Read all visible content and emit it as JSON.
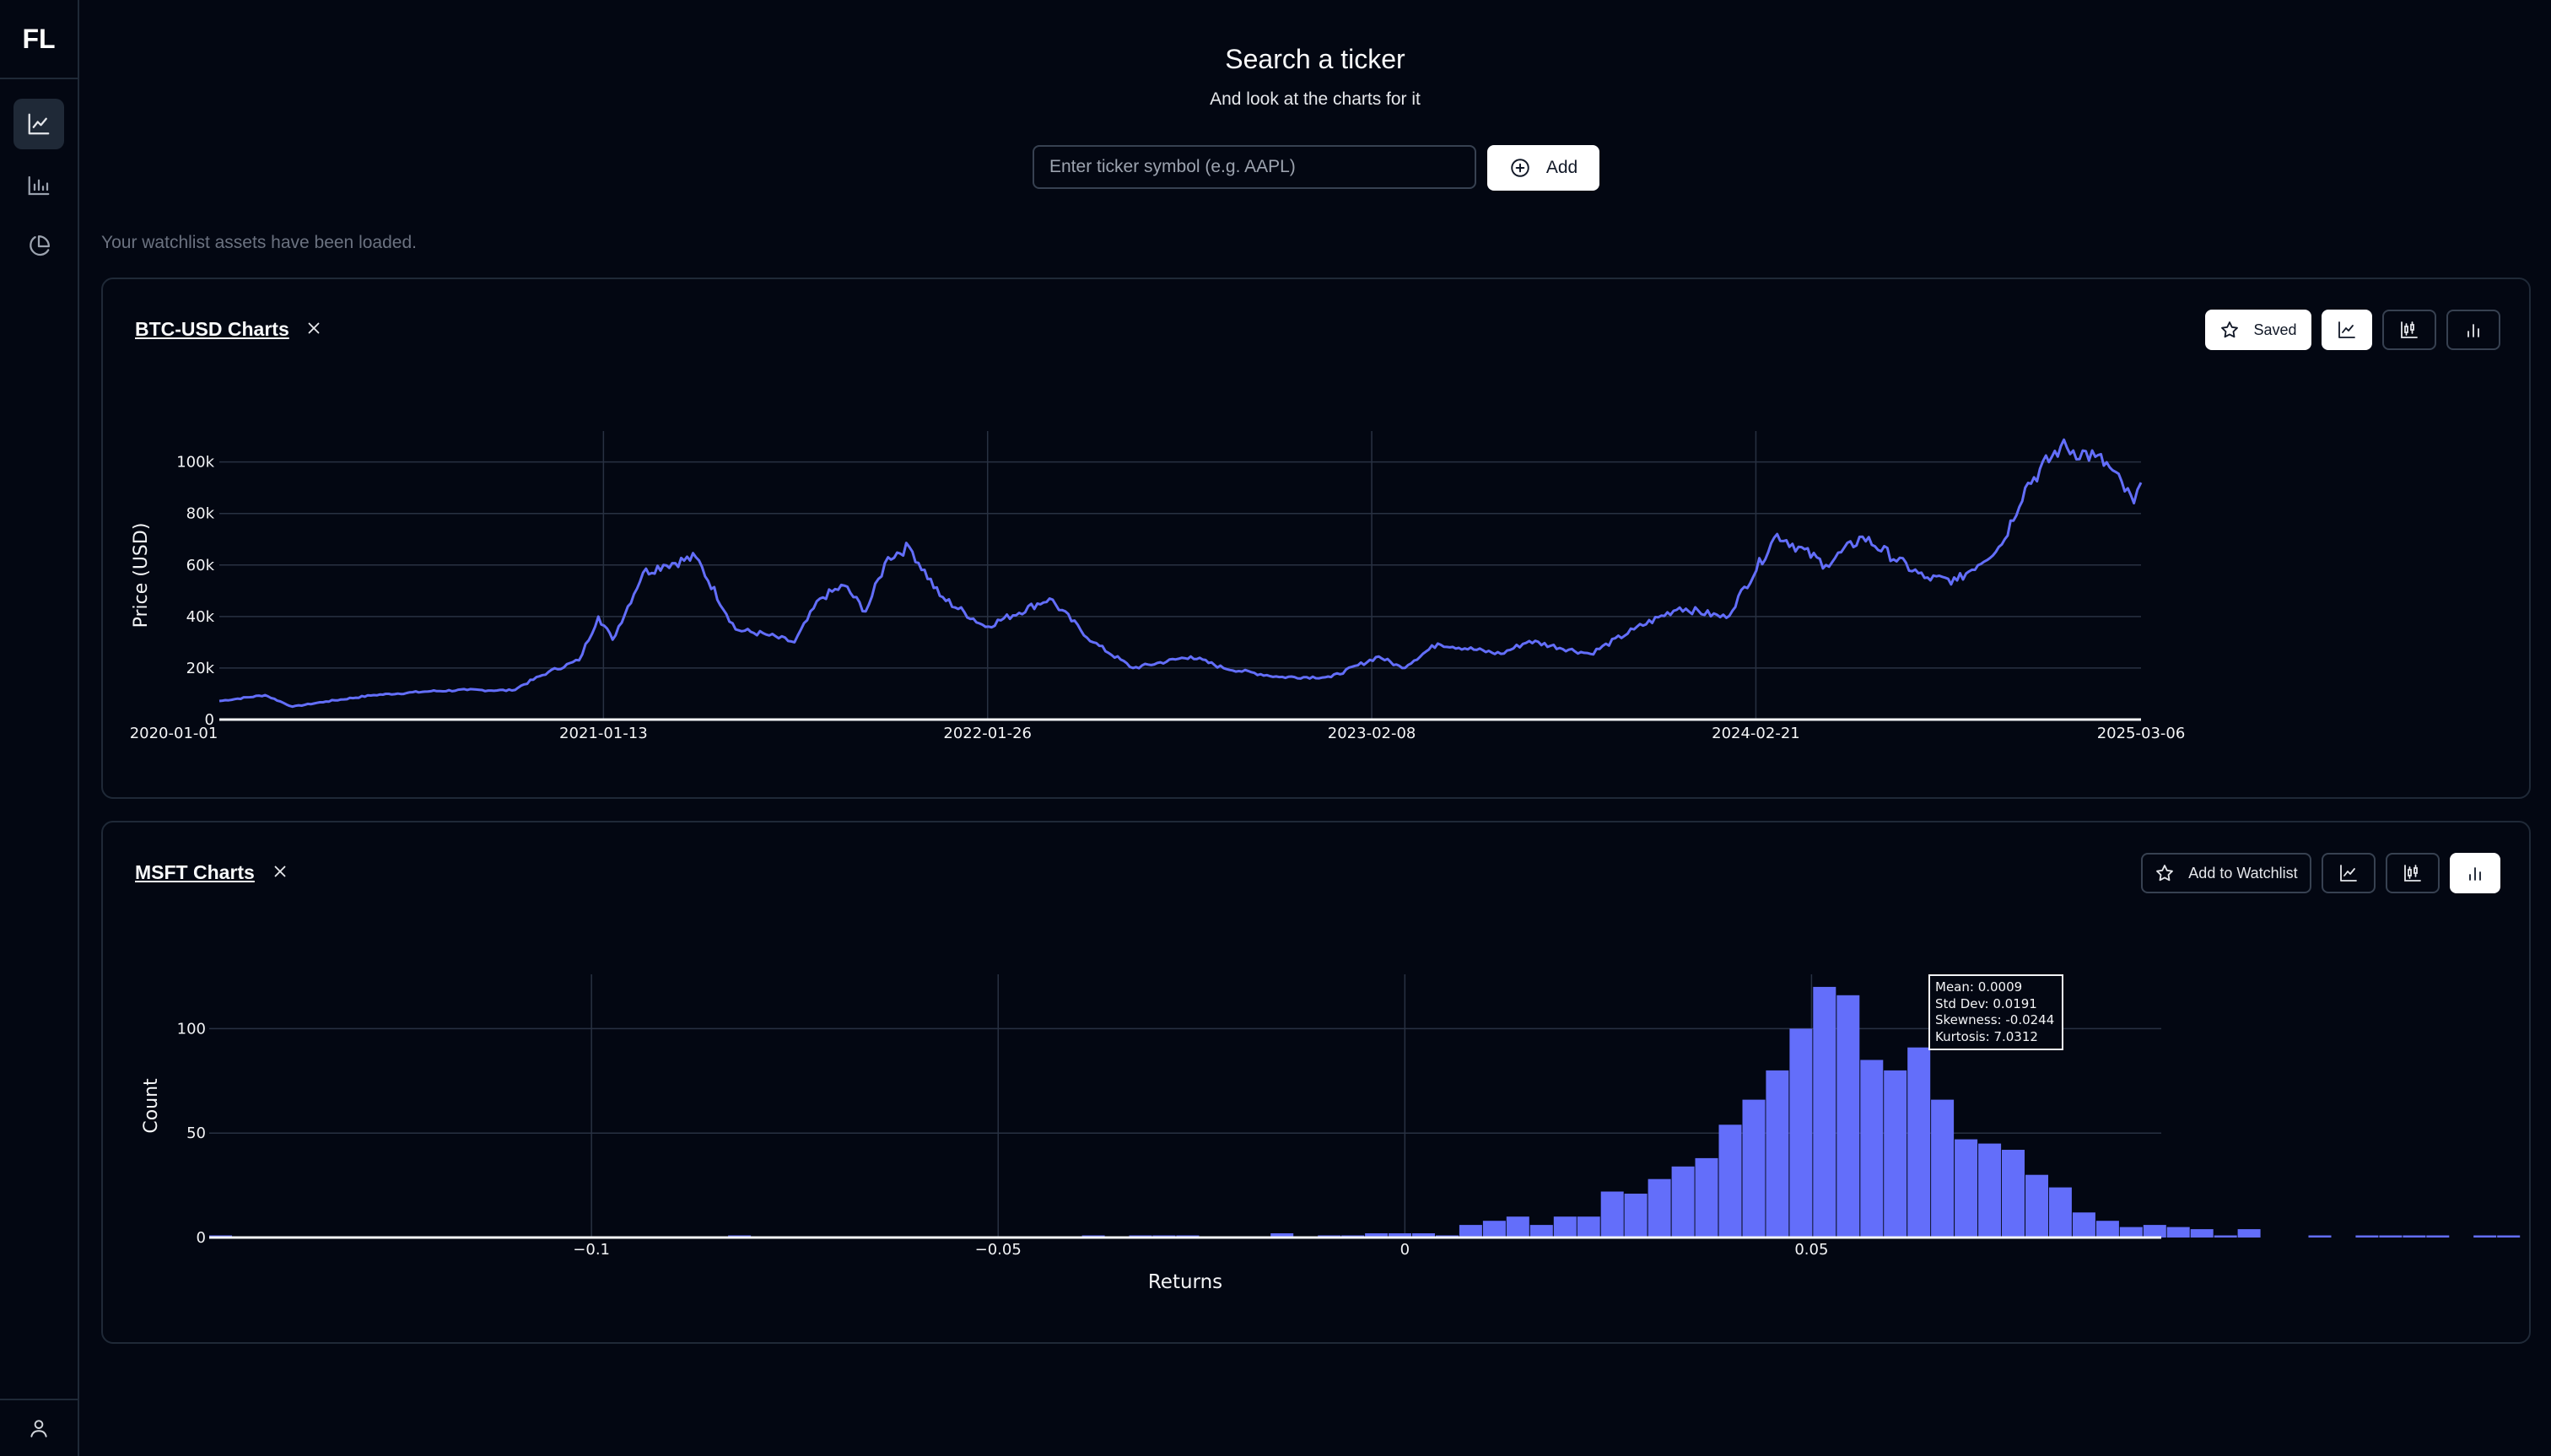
{
  "app": {
    "logo": "FL"
  },
  "sidebar": {
    "items": [
      {
        "icon": "line-chart-icon",
        "active": true
      },
      {
        "icon": "bar-chart-icon",
        "active": false
      },
      {
        "icon": "pie-chart-icon",
        "active": false
      }
    ],
    "footer_icon": "user-icon"
  },
  "header": {
    "title": "Search a ticker",
    "subtitle": "And look at the charts for it"
  },
  "search": {
    "placeholder": "Enter ticker symbol (e.g. AAPL)",
    "value": "",
    "add_label": "Add"
  },
  "status": "Your watchlist assets have been loaded.",
  "colors": {
    "background": "#030712",
    "series": "#636efa",
    "border": "#1f2937"
  },
  "cards": [
    {
      "title": "BTC-USD Charts",
      "watch_label": "Saved",
      "active_view": "line",
      "chart_data": {
        "type": "line",
        "xlabel": "",
        "ylabel": "Price (USD)",
        "x_tick_labels": [
          "2020-01-01",
          "2021-01-13",
          "2022-01-26",
          "2023-02-08",
          "2024-02-21",
          "2025-03-06"
        ],
        "y_tick_labels": [
          "0",
          "20k",
          "40k",
          "60k",
          "80k",
          "100k"
        ],
        "ylim": [
          0,
          112000
        ],
        "grid": true,
        "x": [
          "2020-01-01",
          "2020-02-15",
          "2020-03-13",
          "2020-04-15",
          "2020-06-01",
          "2020-07-27",
          "2020-09-01",
          "2020-10-15",
          "2020-11-20",
          "2020-12-20",
          "2021-01-08",
          "2021-01-22",
          "2021-02-21",
          "2021-03-13",
          "2021-04-14",
          "2021-05-23",
          "2021-06-22",
          "2021-07-20",
          "2021-08-14",
          "2021-09-07",
          "2021-09-28",
          "2021-10-20",
          "2021-11-10",
          "2021-12-10",
          "2022-01-24",
          "2022-03-28",
          "2022-05-10",
          "2022-06-18",
          "2022-08-14",
          "2022-09-15",
          "2022-11-09",
          "2022-12-30",
          "2023-02-15",
          "2023-03-10",
          "2023-04-14",
          "2023-06-15",
          "2023-07-13",
          "2023-09-11",
          "2023-10-24",
          "2023-12-08",
          "2024-01-23",
          "2024-03-13",
          "2024-04-30",
          "2024-06-05",
          "2024-08-05",
          "2024-09-06",
          "2024-10-20",
          "2024-11-12",
          "2024-12-17",
          "2025-01-20",
          "2025-02-03",
          "2025-02-27",
          "2025-03-06"
        ],
        "y": [
          7200,
          9500,
          5000,
          7000,
          9500,
          11000,
          11500,
          11300,
          18500,
          23000,
          40000,
          31000,
          57000,
          60000,
          63000,
          35000,
          33000,
          30000,
          47000,
          52000,
          42000,
          63000,
          67000,
          48000,
          36000,
          47000,
          30000,
          20000,
          24500,
          20000,
          16500,
          16500,
          24500,
          20000,
          29500,
          25500,
          30500,
          25500,
          35000,
          43500,
          39500,
          72000,
          60000,
          71000,
          55000,
          54000,
          68000,
          90000,
          106000,
          102000,
          98000,
          84000,
          92000
        ]
      }
    },
    {
      "title": "MSFT Charts",
      "watch_label": "Add to Watchlist",
      "active_view": "histogram",
      "stats": {
        "mean": "Mean: 0.0009",
        "std_dev": "Std Dev: 0.0191",
        "skewness": "Skewness: -0.0244",
        "kurtosis": "Kurtosis: 7.0312"
      },
      "chart_data": {
        "type": "bar",
        "xlabel": "Returns",
        "ylabel": "Count",
        "x_tick_labels": [
          "−0.1",
          "−0.05",
          "0",
          "0.05"
        ],
        "y_tick_labels": [
          "0",
          "50",
          "100"
        ],
        "xlim": [
          -0.147,
          0.093
        ],
        "ylim": [
          0,
          126
        ],
        "grid": true,
        "bin_width": 0.0029,
        "bin_start": -0.147,
        "values": [
          1,
          0,
          0,
          0,
          0,
          0,
          0,
          0,
          0,
          0,
          0,
          0,
          0,
          0,
          0,
          0,
          0,
          0,
          0,
          0,
          0,
          0,
          1,
          0,
          0,
          0,
          0,
          0,
          0,
          0,
          0,
          0,
          0,
          0,
          0,
          0,
          0,
          1,
          0,
          1,
          1,
          1,
          0,
          0,
          0,
          2,
          0,
          1,
          1,
          2,
          2,
          2,
          1,
          6,
          8,
          10,
          6,
          10,
          10,
          22,
          21,
          28,
          34,
          38,
          54,
          66,
          80,
          100,
          120,
          116,
          85,
          80,
          91,
          66,
          47,
          45,
          42,
          30,
          24,
          12,
          8,
          5,
          6,
          5,
          4,
          1,
          4,
          0,
          0,
          1,
          0,
          1,
          1,
          1,
          1,
          0,
          1,
          1,
          0,
          0,
          0,
          2,
          0,
          0,
          1,
          0,
          1
        ]
      }
    }
  ]
}
